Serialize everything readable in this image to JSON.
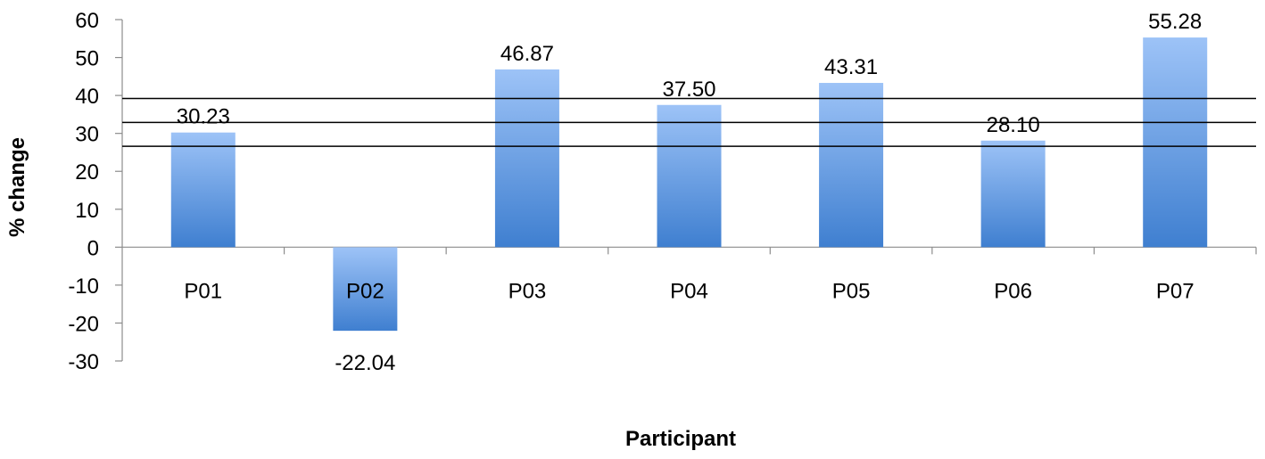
{
  "chart_data": {
    "type": "bar",
    "title": "",
    "xlabel": "Participant",
    "ylabel": "% change",
    "ylim": [
      -30,
      60
    ],
    "yticks": [
      60,
      50,
      40,
      30,
      20,
      10,
      0,
      -10,
      -20,
      -30
    ],
    "categories": [
      "P01",
      "P02",
      "P03",
      "P04",
      "P05",
      "P06",
      "P07"
    ],
    "values": [
      30.23,
      -22.04,
      46.87,
      37.5,
      43.31,
      28.1,
      55.28
    ],
    "value_labels": [
      "30.23",
      "-22.04",
      "46.87",
      "37.50",
      "43.31",
      "28.10",
      "55.28"
    ],
    "reference_lines": [
      39.2,
      32.9,
      26.6
    ],
    "grid": false,
    "legend": "none",
    "colors": {
      "bar_top": "#9dc3f7",
      "bar_bottom": "#3f7fd0",
      "axis": "#8c8c8c",
      "reference_line": "#000000"
    }
  }
}
